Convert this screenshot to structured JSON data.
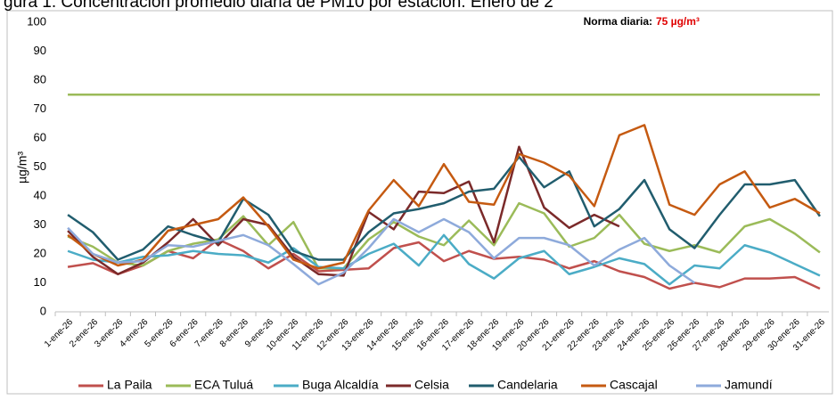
{
  "chart_data": {
    "type": "line",
    "title": "gura 1. Concentración promedio diaria de PM10 por estación. Enero de 2",
    "ylabel": "µg/m³",
    "annotation": {
      "text": "Norma diaria:",
      "value_label": "75 µg/m³"
    },
    "reference_line": {
      "value": 75,
      "color": "#9bbb59"
    },
    "categories": [
      "1-ene-26",
      "2-ene-26",
      "3-ene-26",
      "4-ene-26",
      "5-ene-26",
      "6-ene-26",
      "7-ene-26",
      "8-ene-26",
      "9-ene-26",
      "10-ene-26",
      "11-ene-26",
      "12-ene-26",
      "13-ene-26",
      "14-ene-26",
      "15-ene-26",
      "16-ene-26",
      "17-ene-26",
      "18-ene-26",
      "19-ene-26",
      "20-ene-26",
      "21-ene-26",
      "22-ene-26",
      "23-ene-26",
      "24-ene-26",
      "25-ene-26",
      "26-ene-26",
      "27-ene-26",
      "28-ene-26",
      "29-ene-26",
      "30-ene-26",
      "31-ene-26"
    ],
    "series": [
      {
        "name": "La Paila",
        "color": "#c0504d",
        "values": [
          15.5,
          16.8,
          13,
          16,
          21,
          18.5,
          25,
          21,
          15,
          20,
          14,
          14.5,
          15,
          22,
          24,
          17.5,
          21,
          18.3,
          19,
          18,
          15,
          17.5,
          14,
          12,
          8,
          10,
          8.5,
          11.5,
          11.5,
          12,
          8
        ]
      },
      {
        "name": "ECA Tuluá",
        "color": "#9bbb59",
        "values": [
          26,
          22.5,
          17,
          16,
          21,
          23.5,
          25,
          33,
          23,
          31,
          15,
          15,
          25,
          31,
          26,
          23,
          31.5,
          23,
          37.5,
          34,
          22.5,
          25.5,
          33.5,
          23.5,
          21,
          23,
          20.5,
          29.5,
          32,
          27,
          20.5
        ]
      },
      {
        "name": "Buga Alcaldía",
        "color": "#4bacc6",
        "values": [
          21,
          18,
          17,
          19,
          19.5,
          21,
          20,
          19.5,
          17,
          22,
          15.5,
          15,
          20,
          23.5,
          16,
          26.5,
          16.5,
          11.5,
          18.5,
          21,
          13,
          15.5,
          18.5,
          16.5,
          9.5,
          16,
          15,
          23,
          20.5,
          16.5,
          12.5
        ]
      },
      {
        "name": "Celsia",
        "color": "#7b2a2a",
        "values": [
          28,
          19,
          13,
          17,
          24,
          32,
          23,
          32,
          30,
          19,
          13,
          12.5,
          34.5,
          28.5,
          41.5,
          41,
          45,
          24,
          57,
          36,
          29,
          33.5,
          29.5,
          null,
          null,
          null,
          null,
          null,
          null,
          null,
          null
        ]
      },
      {
        "name": "Candelaria",
        "color": "#215d6e",
        "values": [
          33.5,
          27.5,
          18,
          21.5,
          29.5,
          26.5,
          24,
          39,
          33.5,
          21,
          18,
          18,
          27.5,
          34,
          35.5,
          37.5,
          41.5,
          42.5,
          53.5,
          43,
          48.5,
          29.5,
          35.5,
          45.5,
          28.5,
          22,
          33.5,
          44,
          44,
          45.5,
          33
        ]
      },
      {
        "name": "Cascajal",
        "color": "#c55a11",
        "values": [
          26.5,
          20,
          16,
          18,
          28,
          30,
          32,
          39.5,
          29.5,
          18,
          15,
          17,
          35,
          45.5,
          36.5,
          51,
          38,
          37,
          54.5,
          51.5,
          47,
          36.5,
          61,
          64.5,
          37,
          33.5,
          44,
          48.5,
          36,
          39,
          34
        ]
      },
      {
        "name": "Jamundí",
        "color": "#8eaadb",
        "values": [
          29,
          20,
          17,
          17.5,
          23,
          22.5,
          24.5,
          26.5,
          23,
          16.5,
          9.5,
          13.5,
          22,
          32,
          27.5,
          32,
          27.5,
          18.5,
          25.5,
          25.5,
          23,
          16,
          21.5,
          25.5,
          16,
          10,
          null,
          null,
          null,
          null,
          null
        ]
      }
    ],
    "ylim": [
      0,
      100
    ],
    "yticks": [
      0,
      10,
      20,
      30,
      40,
      50,
      60,
      70,
      80,
      90,
      100
    ]
  }
}
